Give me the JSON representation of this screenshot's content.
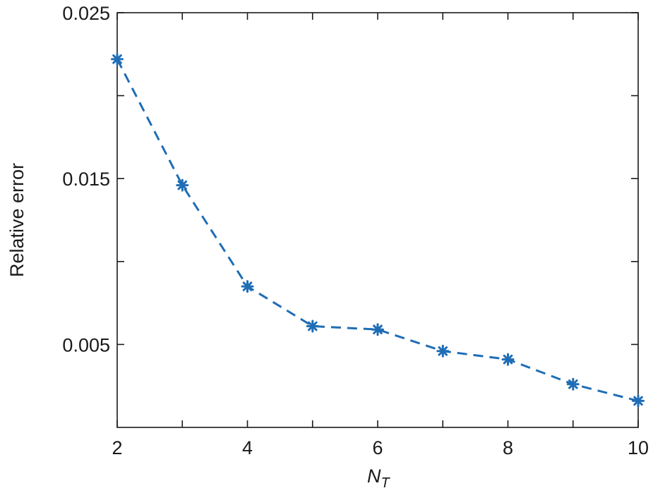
{
  "chart_data": {
    "type": "line",
    "title": "",
    "xlabel": "N",
    "xlabel_subscript": "T",
    "ylabel": "Relative error",
    "x": [
      2,
      3,
      4,
      5,
      6,
      7,
      8,
      9,
      10
    ],
    "series": [
      {
        "values": [
          0.0222,
          0.0146,
          0.0085,
          0.0061,
          0.0059,
          0.0046,
          0.0041,
          0.0026,
          0.0016
        ],
        "color": "#1f6db5",
        "line_style": "dashed",
        "marker": "asterisk"
      }
    ],
    "xlim": [
      2,
      10
    ],
    "ylim": [
      0,
      0.025
    ],
    "xticks": [
      2,
      4,
      6,
      8,
      10
    ],
    "xtick_labels": [
      "2",
      "4",
      "6",
      "8",
      "10"
    ],
    "yticks": [
      0.005,
      0.015,
      0.025
    ],
    "ytick_labels": [
      "0.005",
      "0.015",
      "0.025"
    ],
    "yminor_ticks": [
      0.01,
      0.02
    ],
    "xminor_ticks": [
      3,
      5,
      7,
      9
    ],
    "grid": false,
    "legend": "none"
  }
}
